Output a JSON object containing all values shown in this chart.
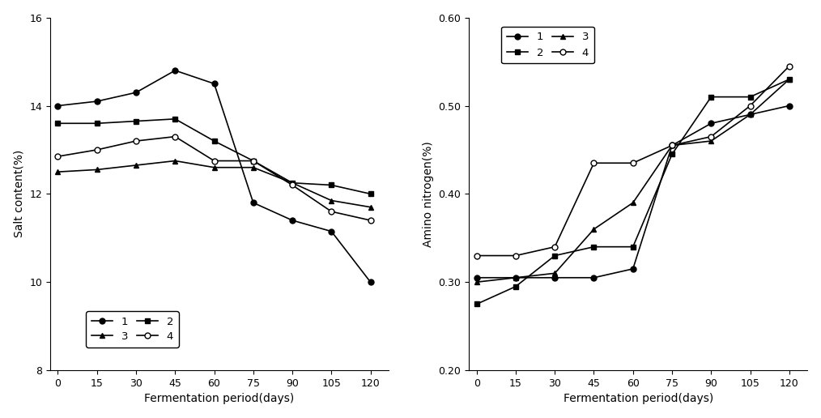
{
  "x": [
    0,
    15,
    30,
    45,
    60,
    75,
    90,
    105,
    120
  ],
  "salt_1": [
    14.0,
    14.1,
    14.3,
    14.8,
    14.5,
    11.8,
    11.4,
    11.15,
    10.0
  ],
  "salt_2": [
    13.6,
    13.6,
    13.65,
    13.7,
    13.2,
    12.75,
    12.25,
    12.2,
    12.0
  ],
  "salt_3": [
    12.5,
    12.55,
    12.65,
    12.75,
    12.6,
    12.6,
    12.25,
    11.85,
    11.7
  ],
  "salt_4": [
    12.85,
    13.0,
    13.2,
    13.3,
    12.75,
    12.75,
    12.2,
    11.6,
    11.4
  ],
  "amino_1": [
    0.305,
    0.305,
    0.305,
    0.305,
    0.315,
    0.455,
    0.48,
    0.49,
    0.5
  ],
  "amino_2": [
    0.275,
    0.295,
    0.33,
    0.34,
    0.34,
    0.445,
    0.51,
    0.51,
    0.53
  ],
  "amino_3": [
    0.3,
    0.305,
    0.31,
    0.36,
    0.39,
    0.455,
    0.46,
    0.49,
    0.53
  ],
  "amino_4": [
    0.33,
    0.33,
    0.34,
    0.435,
    0.435,
    0.455,
    0.465,
    0.5,
    0.545
  ],
  "salt_ylim": [
    8,
    16
  ],
  "salt_yticks": [
    8,
    10,
    12,
    14,
    16
  ],
  "amino_ylim": [
    0.2,
    0.6
  ],
  "amino_yticks": [
    0.2,
    0.3,
    0.4,
    0.5,
    0.6
  ],
  "xticks": [
    0,
    15,
    30,
    45,
    60,
    75,
    90,
    105,
    120
  ],
  "xlabel": "Fermentation period(days)",
  "salt_ylabel": "Salt content(%)",
  "amino_ylabel": "Amino nitrogen(%)"
}
